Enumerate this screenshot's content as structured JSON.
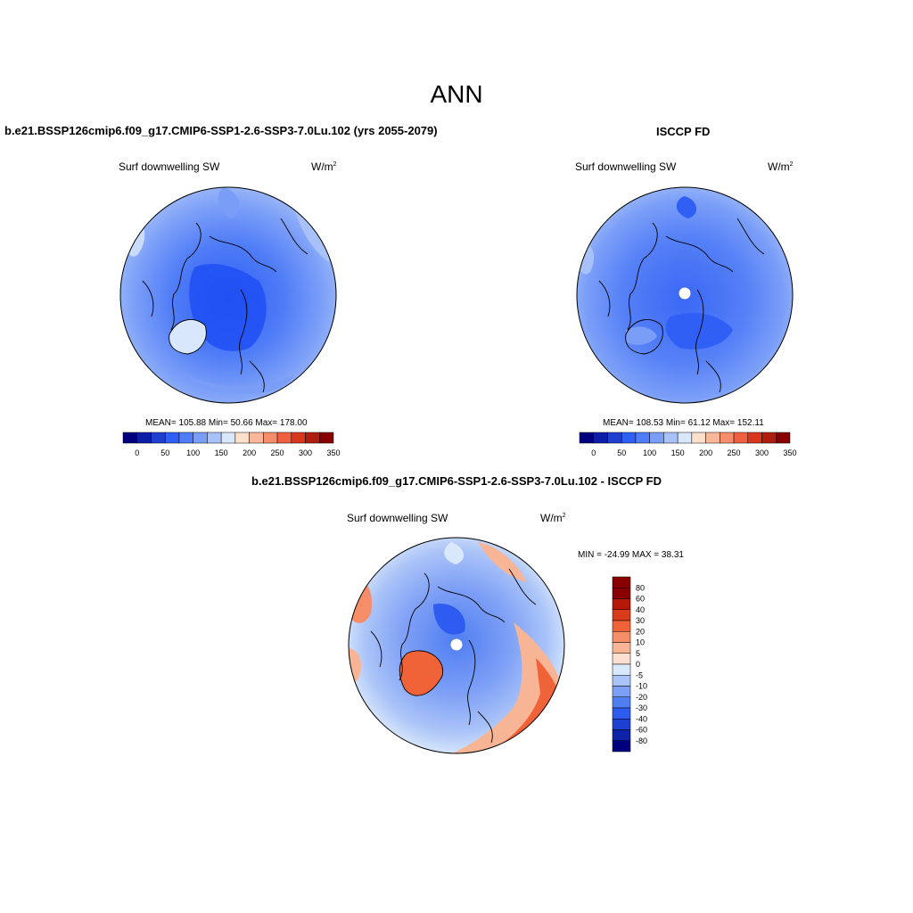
{
  "title": "ANN",
  "panels": [
    {
      "title": "b.e21.BSSP126cmip6.f09_g17.CMIP6-SSP1-2.6-SSP3-7.0Lu.102 (yrs 2055-2079)",
      "variable": "Surf downwelling SW",
      "units_base": "W/m",
      "units_exp": "2",
      "stats": "MEAN= 105.88  Min=  50.66  Max= 178.00",
      "colorbar_labels": [
        "0",
        "50",
        "100",
        "150",
        "200",
        "250",
        "300",
        "350"
      ]
    },
    {
      "title": "ISCCP FD",
      "variable": "Surf downwelling SW",
      "units_base": "W/m",
      "units_exp": "2",
      "stats": "MEAN= 108.53  Min=  61.12  Max= 152.11",
      "colorbar_labels": [
        "0",
        "50",
        "100",
        "150",
        "200",
        "250",
        "300",
        "350"
      ]
    },
    {
      "title": "b.e21.BSSP126cmip6.f09_g17.CMIP6-SSP1-2.6-SSP3-7.0Lu.102 - ISCCP FD",
      "variable": "Surf downwelling SW",
      "units_base": "W/m",
      "units_exp": "2",
      "stats": "MIN = -24.99 MAX =  38.31",
      "colorbar_labels": [
        "80",
        "60",
        "40",
        "30",
        "20",
        "10",
        "5",
        "0",
        "-5",
        "-10",
        "-20",
        "-30",
        "-40",
        "-60",
        "-80"
      ]
    }
  ],
  "colors": {
    "seq": [
      "#00007f",
      "#0d1ea6",
      "#1f3fd0",
      "#2f5ff5",
      "#4f7cf7",
      "#7a9ef8",
      "#a8c1f9",
      "#d8e7fb",
      "#fde0cc",
      "#f8b79a",
      "#f58d6c",
      "#f05f3f",
      "#d8371e",
      "#b01c0e",
      "#880000"
    ],
    "diff": [
      "#8a0000",
      "#b51708",
      "#d93c1b",
      "#f06238",
      "#f48d68",
      "#f7b595",
      "#fbe0cf",
      "#d9e8fb",
      "#abc4f8",
      "#7d9ff6",
      "#4f7ef2",
      "#2e5cf0",
      "#1d3fd2",
      "#0d22a7",
      "#00007f"
    ]
  }
}
